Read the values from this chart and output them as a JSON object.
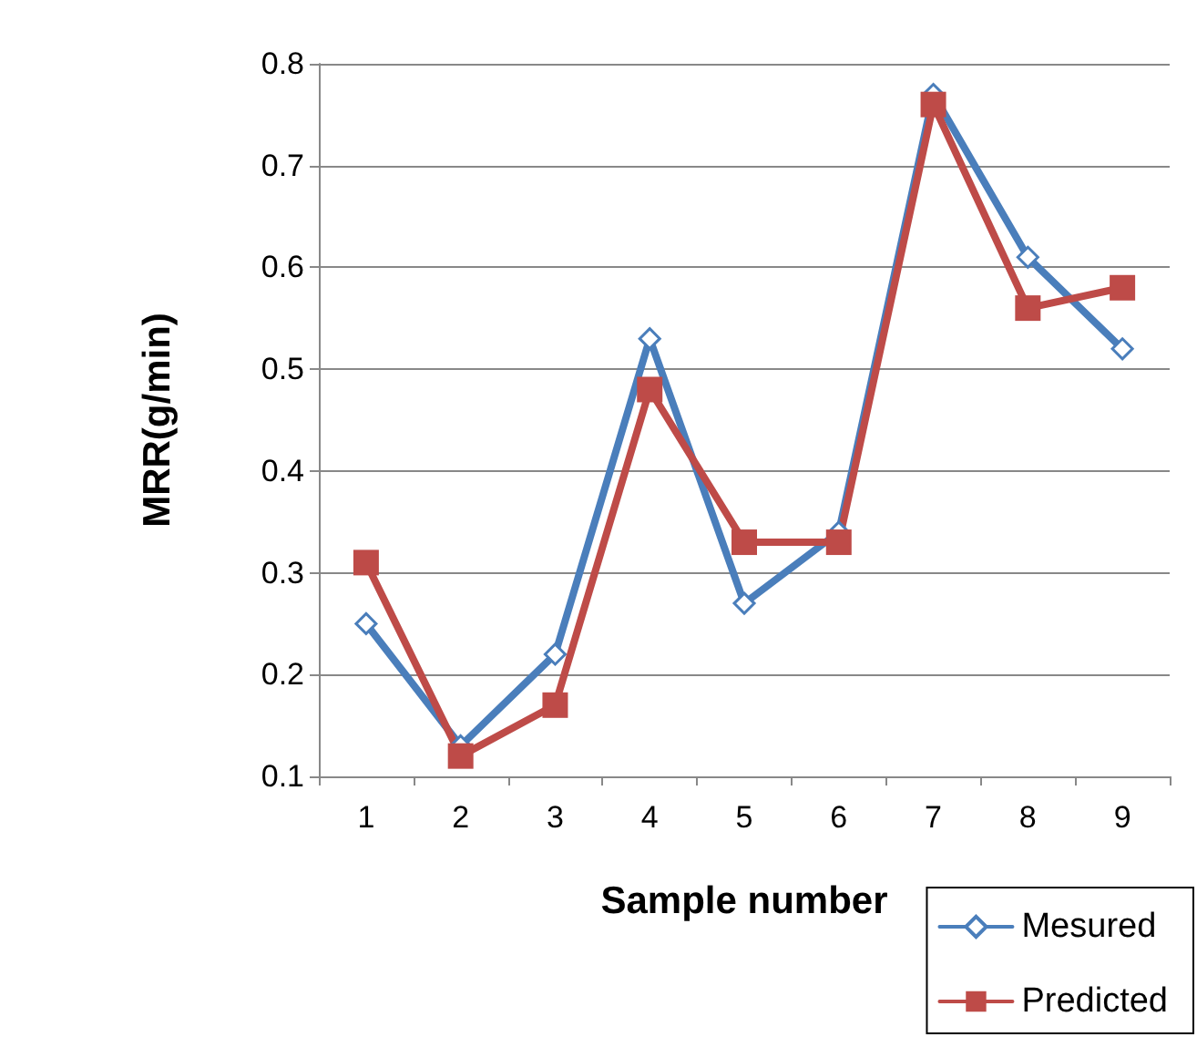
{
  "chart_data": {
    "type": "line",
    "xlabel": "Sample number",
    "ylabel": "MRR(g/min)",
    "categories": [
      "1",
      "2",
      "3",
      "4",
      "5",
      "6",
      "7",
      "8",
      "9"
    ],
    "series": [
      {
        "name": "Mesured",
        "color": "#4a7ebb",
        "marker": "diamond",
        "values": [
          0.25,
          0.13,
          0.22,
          0.53,
          0.27,
          0.34,
          0.77,
          0.61,
          0.52
        ]
      },
      {
        "name": "Predicted",
        "color": "#be4b48",
        "marker": "square",
        "values": [
          0.31,
          0.12,
          0.17,
          0.48,
          0.33,
          0.33,
          0.76,
          0.56,
          0.58
        ]
      }
    ],
    "ylim": [
      0.1,
      0.8
    ],
    "yticks": [
      0.1,
      0.2,
      0.3,
      0.4,
      0.5,
      0.6,
      0.7,
      0.8
    ],
    "grid": "y",
    "legend": "bottom right"
  }
}
